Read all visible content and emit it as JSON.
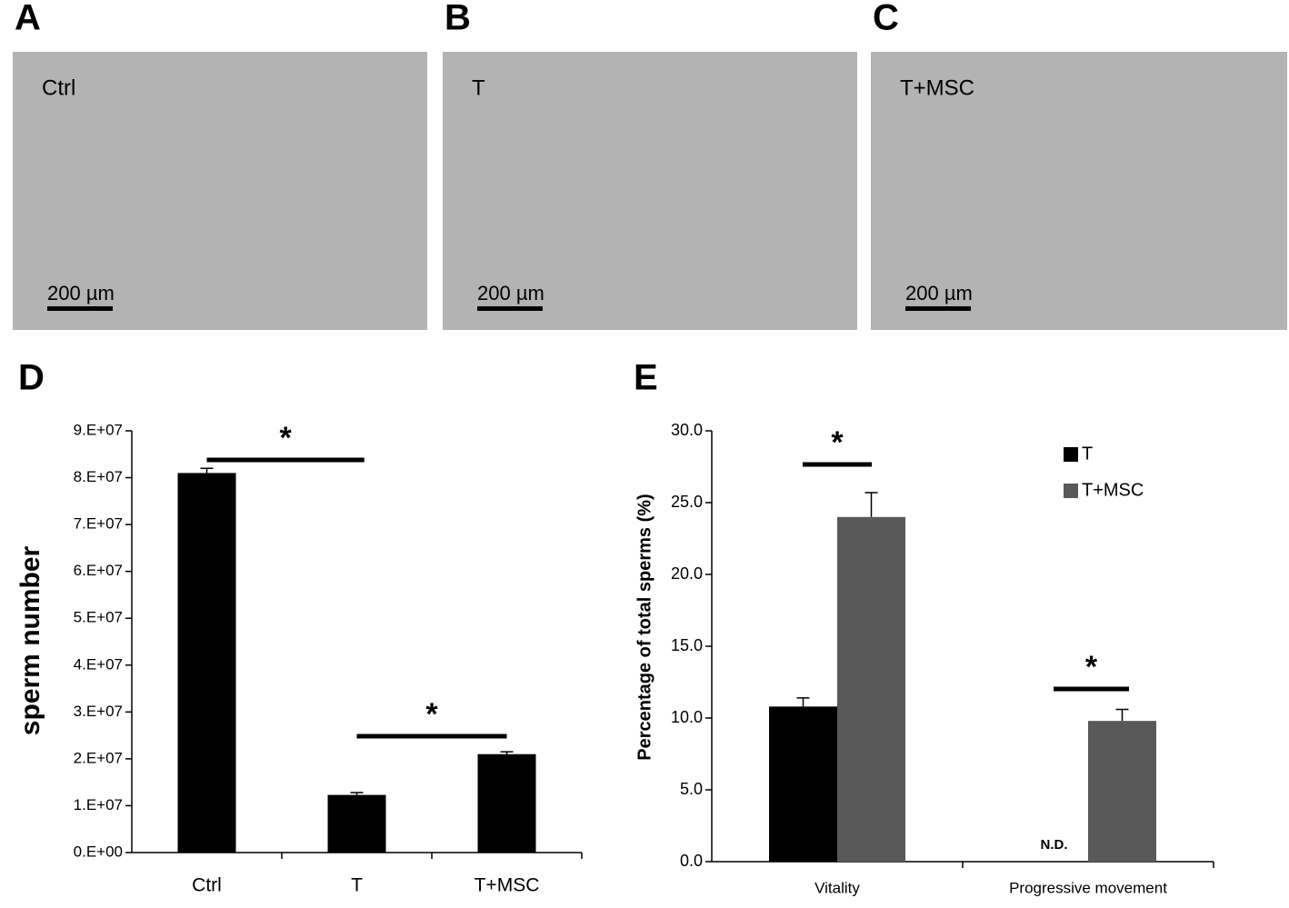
{
  "panels": [
    {
      "letter": "A",
      "label": "Ctrl",
      "scale": "200 µm"
    },
    {
      "letter": "B",
      "label": "T",
      "scale": "200 µm"
    },
    {
      "letter": "C",
      "label": "T+MSC",
      "scale": "200 µm"
    }
  ],
  "chart_data": [
    {
      "type": "bar",
      "letter": "D",
      "ylabel": "sperm number",
      "categories": [
        "Ctrl",
        "T",
        "T+MSC"
      ],
      "values": [
        81000000,
        12300000,
        21000000
      ],
      "errors": [
        1000000,
        500000,
        500000
      ],
      "color": "#000000",
      "annotations": [
        "*",
        "*"
      ],
      "ylim": [
        0,
        90000000
      ],
      "yticks": [
        {
          "value": 0,
          "label": "0.E+00"
        },
        {
          "value": 10000000,
          "label": "1.E+07"
        },
        {
          "value": 20000000,
          "label": "2.E+07"
        },
        {
          "value": 30000000,
          "label": "3.E+07"
        },
        {
          "value": 40000000,
          "label": "4.E+07"
        },
        {
          "value": 50000000,
          "label": "5.E+07"
        },
        {
          "value": 60000000,
          "label": "6.E+07"
        },
        {
          "value": 70000000,
          "label": "7.E+07"
        },
        {
          "value": 80000000,
          "label": "8.E+07"
        },
        {
          "value": 90000000,
          "label": "9.E+07"
        }
      ]
    },
    {
      "type": "grouped-bar",
      "letter": "E",
      "ylabel": "Percentage of total sperms (%)",
      "categories": [
        "Vitality",
        "Progressive movement"
      ],
      "series": [
        {
          "name": "T",
          "color": "#000000",
          "values": [
            10.8,
            null
          ],
          "errors": [
            0.6,
            null
          ],
          "value_labels": [
            null,
            "N.D."
          ]
        },
        {
          "name": "T+MSC",
          "color": "#595959",
          "values": [
            24.0,
            9.8
          ],
          "errors": [
            1.7,
            0.8
          ]
        }
      ],
      "annotations": [
        "*",
        "*"
      ],
      "ylim": [
        0,
        30
      ],
      "yticks": [
        {
          "value": 0,
          "label": "0.0"
        },
        {
          "value": 5,
          "label": "5.0"
        },
        {
          "value": 10,
          "label": "10.0"
        },
        {
          "value": 15,
          "label": "15.0"
        },
        {
          "value": 20,
          "label": "20.0"
        },
        {
          "value": 25,
          "label": "25.0"
        },
        {
          "value": 30,
          "label": "30.0"
        }
      ]
    }
  ]
}
